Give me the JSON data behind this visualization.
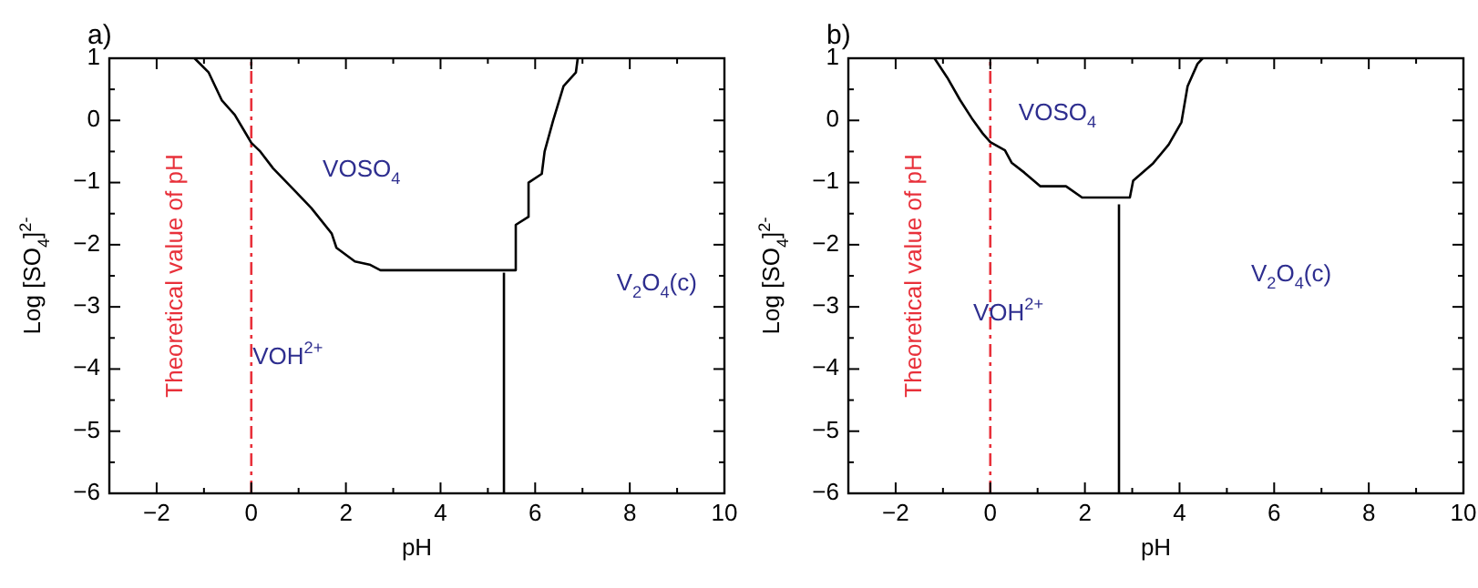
{
  "chart_data": [
    {
      "type": "line",
      "title": "a)",
      "xlabel": "pH",
      "ylabel": "Log [SO$_{4}$]$^{2-}$",
      "xlim": [
        -3,
        10
      ],
      "ylim": [
        -6,
        1
      ],
      "xticks": [
        -2,
        {
          "value": -1,
          "label": null
        },
        0,
        {
          "value": 1,
          "label": null
        },
        2,
        {
          "value": 3,
          "label": null
        },
        4,
        {
          "value": 5,
          "label": null
        },
        6,
        {
          "value": 7,
          "label": null
        },
        8,
        {
          "value": 9,
          "label": null
        },
        10
      ],
      "yticks": [
        -6,
        {
          "value": -5.5,
          "label": null
        },
        -5,
        {
          "value": -4.5,
          "label": null
        },
        -4,
        {
          "value": -3.5,
          "label": null
        },
        -3,
        {
          "value": -2.5,
          "label": null
        },
        -2,
        {
          "value": -1.5,
          "label": null
        },
        -1,
        {
          "value": -0.5,
          "label": null
        },
        0,
        {
          "value": 0.5,
          "label": null
        },
        1
      ],
      "grid": false,
      "marker": "none",
      "line_style": "solid",
      "series": [
        {
          "color": "#000000",
          "x": [
            -1.2,
            -0.9,
            -0.62,
            -0.35,
            -0.1,
            0,
            0.19,
            0.46,
            0.93,
            1.27,
            1.7,
            1.8,
            2.19,
            2.5,
            2.73,
            5.59,
            5.59,
            5.86,
            5.86,
            6.14,
            6.2,
            6.38,
            6.6,
            6.86,
            6.9
          ],
          "values": [
            1,
            0.77,
            0.32,
            0.09,
            -0.23,
            -0.36,
            -0.5,
            -0.77,
            -1.14,
            -1.41,
            -1.82,
            -2.05,
            -2.27,
            -2.32,
            -2.41,
            -2.41,
            -1.68,
            -1.55,
            -1.0,
            -0.86,
            -0.5,
            0,
            0.55,
            0.77,
            1
          ]
        },
        {
          "color": "#000000",
          "x": [
            5.34,
            5.34
          ],
          "values": [
            -2.45,
            -6
          ]
        }
      ],
      "ref_lines": [
        {
          "axis": "x",
          "value": 0,
          "label": "Theoretical value of pH",
          "color": "#e8303a",
          "line_style": "dashdot"
        }
      ],
      "annotations": [
        "VOSO$_{4}$",
        "VOH$^{2+}$",
        "V$_{2}$O$_{4}$(c)"
      ]
    },
    {
      "type": "line",
      "title": "b)",
      "xlabel": "pH",
      "ylabel": "Log [SO$_{4}$]$^{2-}$",
      "xlim": [
        -3,
        10
      ],
      "ylim": [
        -6,
        1
      ],
      "xticks": [
        -2,
        {
          "value": -1,
          "label": null
        },
        0,
        {
          "value": 1,
          "label": null
        },
        2,
        {
          "value": 3,
          "label": null
        },
        4,
        {
          "value": 5,
          "label": null
        },
        6,
        {
          "value": 7,
          "label": null
        },
        8,
        {
          "value": 9,
          "label": null
        },
        10
      ],
      "yticks": [
        -6,
        {
          "value": -5.5,
          "label": null
        },
        -5,
        {
          "value": -4.5,
          "label": null
        },
        -4,
        {
          "value": -3.5,
          "label": null
        },
        -3,
        {
          "value": -2.5,
          "label": null
        },
        -2,
        {
          "value": -1.5,
          "label": null
        },
        -1,
        {
          "value": -0.5,
          "label": null
        },
        0,
        {
          "value": 0.5,
          "label": null
        },
        1
      ],
      "grid": false,
      "marker": "none",
      "line_style": "solid",
      "series": [
        {
          "color": "#000000",
          "x": [
            -1.18,
            -0.91,
            -0.64,
            -0.37,
            -0.16,
            0,
            0.31,
            0.45,
            0.72,
            1.06,
            1.6,
            1.94,
            2.95,
            3.02,
            3.43,
            3.77,
            4.04,
            4.17,
            4.38,
            4.49
          ],
          "values": [
            1,
            0.69,
            0.33,
            0.01,
            -0.21,
            -0.35,
            -0.48,
            -0.68,
            -0.84,
            -1.06,
            -1.06,
            -1.24,
            -1.24,
            -0.97,
            -0.7,
            -0.39,
            -0.03,
            0.55,
            0.91,
            1
          ]
        },
        {
          "color": "#000000",
          "x": [
            2.72,
            2.72
          ],
          "values": [
            -1.35,
            -6
          ]
        }
      ],
      "ref_lines": [
        {
          "axis": "x",
          "value": 0,
          "label": "Theoretical value of pH",
          "color": "#e8303a",
          "line_style": "dashdot"
        }
      ],
      "annotations": [
        "VOSO$_{4}$",
        "VOH$^{2+}$",
        "V$_{2}$O$_{4}$(c)"
      ]
    }
  ]
}
